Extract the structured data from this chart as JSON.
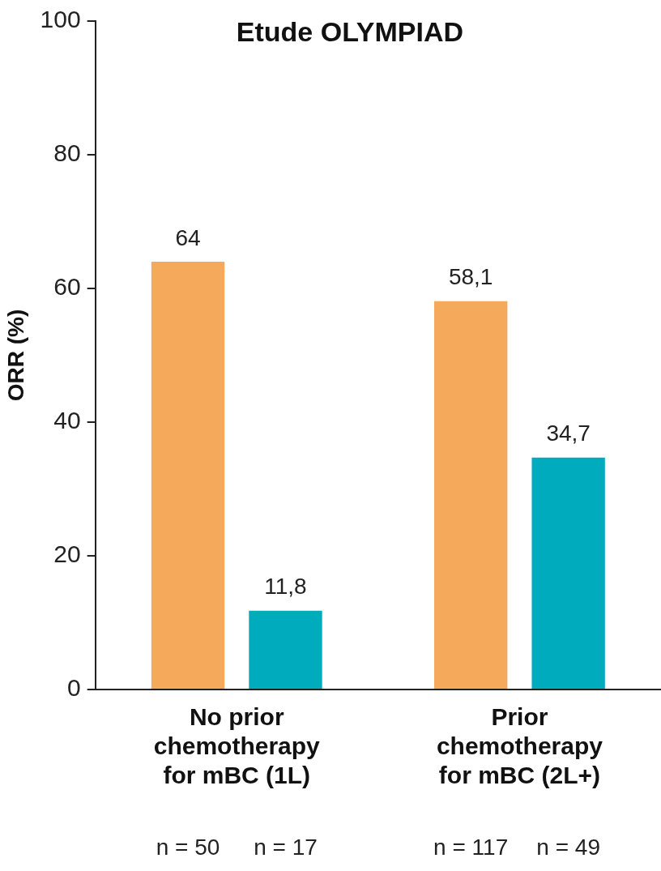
{
  "chart_data": {
    "type": "bar",
    "title": "Etude OLYMPIAD",
    "ylabel": "ORR (%)",
    "categories": [
      "No prior chemotherapy for mBC (1L)",
      "Prior chemotherapy for mBC (2L+)"
    ],
    "series": [
      {
        "color": "#f5a95a",
        "values": [
          64,
          58.1
        ],
        "value_labels": [
          "64",
          "58,1"
        ]
      },
      {
        "color": "#00abbd",
        "values": [
          11.8,
          34.7
        ],
        "value_labels": [
          "11,8",
          "34,7"
        ]
      }
    ],
    "ylim": [
      0,
      100
    ],
    "yticks": [
      0,
      20,
      40,
      60,
      80,
      100
    ],
    "grid": false,
    "legend": false,
    "annotations": [
      "n = 50",
      "n = 17",
      "n = 117",
      "n = 49"
    ]
  }
}
